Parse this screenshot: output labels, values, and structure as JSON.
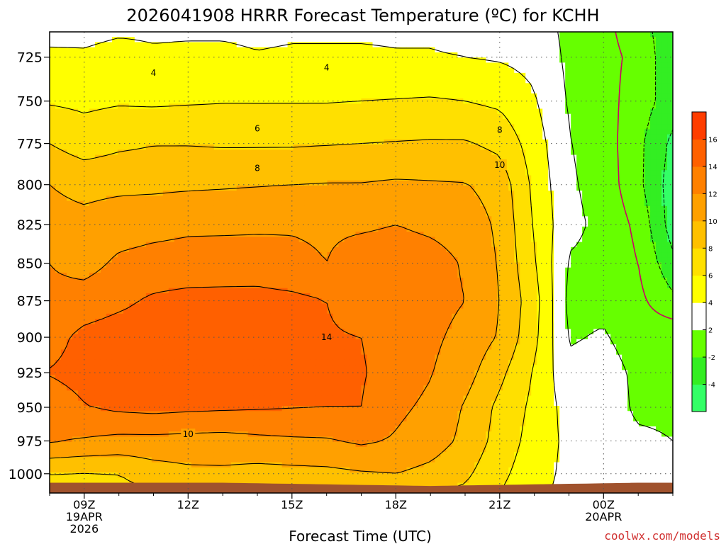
{
  "title": "2026041908 HRRR Forecast Temperature (ºC) for KCHH",
  "credit": "coolwx.com/models",
  "chart_data": {
    "type": "heatmap",
    "title": "2026041908 HRRR Forecast Temperature (ºC) for KCHH",
    "xlabel": "Forecast Time (UTC)",
    "ylabel": "",
    "x_ticks": [
      {
        "hour": 9,
        "lines": [
          "09Z",
          "19APR",
          "2026"
        ]
      },
      {
        "hour": 12,
        "lines": [
          "12Z"
        ]
      },
      {
        "hour": 15,
        "lines": [
          "15Z"
        ]
      },
      {
        "hour": 18,
        "lines": [
          "18Z"
        ]
      },
      {
        "hour": 21,
        "lines": [
          "21Z"
        ]
      },
      {
        "hour": 24,
        "lines": [
          "00Z",
          "20APR"
        ]
      }
    ],
    "x_range_hours": [
      8,
      26
    ],
    "y_ticks_hpa": [
      725,
      750,
      775,
      800,
      825,
      850,
      875,
      900,
      925,
      950,
      975,
      1000
    ],
    "y_range_hpa": [
      1015,
      711
    ],
    "grid": true,
    "colorbar": {
      "placement": "right",
      "levels": [
        -6,
        -4,
        -2,
        2,
        4,
        6,
        8,
        10,
        12,
        14,
        16,
        18
      ],
      "tick_labels": [
        "-4",
        "-2",
        "2",
        "4",
        "6",
        "8",
        "10",
        "12",
        "14",
        "16"
      ],
      "colors": [
        "#33ff66",
        "#33ee22",
        "#66ff00",
        "#ffffff",
        "#ffff00",
        "#ffe000",
        "#ffc000",
        "#ffa000",
        "#ff8000",
        "#ff6000",
        "#ff3d00"
      ]
    },
    "colors": {
      "zero_line": "#cc0066",
      "ground": "#a0522d",
      "contour": "#000000"
    },
    "contour_labels": [
      {
        "value": "4",
        "hour": 11.0,
        "hpa": 734
      },
      {
        "value": "4",
        "hour": 16.0,
        "hpa": 731
      },
      {
        "value": "6",
        "hour": 14.0,
        "hpa": 766
      },
      {
        "value": "8",
        "hour": 14.0,
        "hpa": 790
      },
      {
        "value": "8",
        "hour": 21.0,
        "hpa": 767
      },
      {
        "value": "10",
        "hour": 21.0,
        "hpa": 788
      },
      {
        "value": "14",
        "hour": 16.0,
        "hpa": 900
      },
      {
        "value": "10",
        "hour": 12.0,
        "hpa": 970
      }
    ],
    "temperature_grid": {
      "hours": [
        8,
        9,
        10,
        11,
        12,
        13,
        14,
        15,
        16,
        17,
        18,
        19,
        20,
        21,
        22,
        23,
        24,
        25,
        26
      ],
      "levels_hpa": [
        710,
        725,
        750,
        775,
        800,
        825,
        850,
        875,
        900,
        925,
        950,
        975,
        1000,
        1015
      ],
      "values_c": [
        [
          3.5,
          3.6,
          3.8,
          3.8,
          3.8,
          3.8,
          3.7,
          3.8,
          3.8,
          3.8,
          3.8,
          3.8,
          3.6,
          3.4,
          3.0,
          1.5,
          0.5,
          -1.0,
          -3.5
        ],
        [
          4.3,
          4.2,
          4.5,
          4.2,
          4.3,
          4.3,
          4.1,
          4.2,
          4.2,
          4.2,
          4.1,
          4.1,
          4.0,
          3.8,
          3.4,
          1.6,
          0.6,
          -0.5,
          -3.5
        ],
        [
          5.8,
          5.6,
          5.8,
          5.7,
          5.8,
          5.9,
          5.9,
          5.9,
          5.9,
          6.0,
          6.1,
          6.2,
          6.0,
          5.6,
          4.2,
          1.8,
          0.8,
          -1.0,
          -3.0
        ],
        [
          8.0,
          7.0,
          7.6,
          7.9,
          7.9,
          7.8,
          7.8,
          7.8,
          7.9,
          8.0,
          8.1,
          8.2,
          8.2,
          7.5,
          5.0,
          2.1,
          1.0,
          -1.5,
          -4.5
        ],
        [
          10.0,
          9.5,
          9.6,
          9.6,
          9.7,
          9.8,
          9.9,
          10.0,
          10.1,
          10.1,
          10.3,
          10.2,
          10.1,
          9.2,
          5.5,
          2.3,
          1.2,
          -1.5,
          -5.0
        ],
        [
          10.6,
          10.5,
          11.0,
          11.3,
          11.6,
          11.6,
          11.7,
          11.8,
          11.7,
          11.7,
          12.0,
          11.6,
          11.2,
          9.6,
          5.8,
          2.5,
          1.5,
          -0.5,
          -5.0
        ],
        [
          12.0,
          11.2,
          12.4,
          12.8,
          12.9,
          13.0,
          12.9,
          12.5,
          12.0,
          13.0,
          13.1,
          12.8,
          11.8,
          9.8,
          6.2,
          1.8,
          1.5,
          0.0,
          -3.5
        ],
        [
          12.5,
          13.0,
          13.6,
          14.3,
          14.6,
          14.6,
          14.7,
          14.5,
          14.0,
          13.5,
          13.0,
          12.7,
          12.0,
          10.0,
          6.8,
          1.5,
          1.5,
          0.5,
          -1.5
        ],
        [
          13.3,
          14.5,
          14.9,
          14.9,
          15.0,
          15.0,
          14.9,
          14.6,
          14.1,
          14.0,
          13.0,
          12.4,
          11.4,
          9.8,
          6.5,
          1.8,
          2.2,
          1.0,
          1.5
        ],
        [
          14.1,
          14.6,
          14.9,
          15.0,
          15.0,
          15.2,
          14.9,
          14.7,
          14.5,
          14.2,
          13.0,
          12.1,
          10.8,
          8.5,
          5.8,
          2.5,
          3.0,
          1.5,
          1.8
        ],
        [
          13.0,
          13.9,
          14.4,
          14.6,
          14.4,
          14.3,
          14.2,
          14.1,
          14.0,
          14.0,
          12.4,
          11.6,
          9.8,
          7.5,
          5.5,
          3.2,
          3.5,
          1.5,
          1.5
        ],
        [
          12.2,
          11.8,
          11.4,
          11.4,
          11.3,
          11.2,
          11.5,
          11.7,
          11.8,
          12.3,
          11.8,
          11.0,
          9.5,
          7.2,
          5.2,
          3.5,
          3.2,
          2.5,
          2.0
        ],
        [
          8.0,
          7.9,
          8.0,
          9.0,
          9.5,
          9.6,
          9.3,
          9.4,
          9.5,
          9.8,
          10.0,
          9.4,
          8.4,
          6.5,
          4.8,
          3.5,
          3.0,
          2.6,
          2.5
        ],
        [
          7.0,
          7.2,
          7.4,
          7.7,
          7.9,
          8.0,
          8.0,
          8.0,
          8.0,
          8.0,
          8.0,
          7.8,
          7.6,
          6.0,
          4.5,
          3.4,
          3.0,
          2.5,
          2.3
        ]
      ]
    }
  }
}
